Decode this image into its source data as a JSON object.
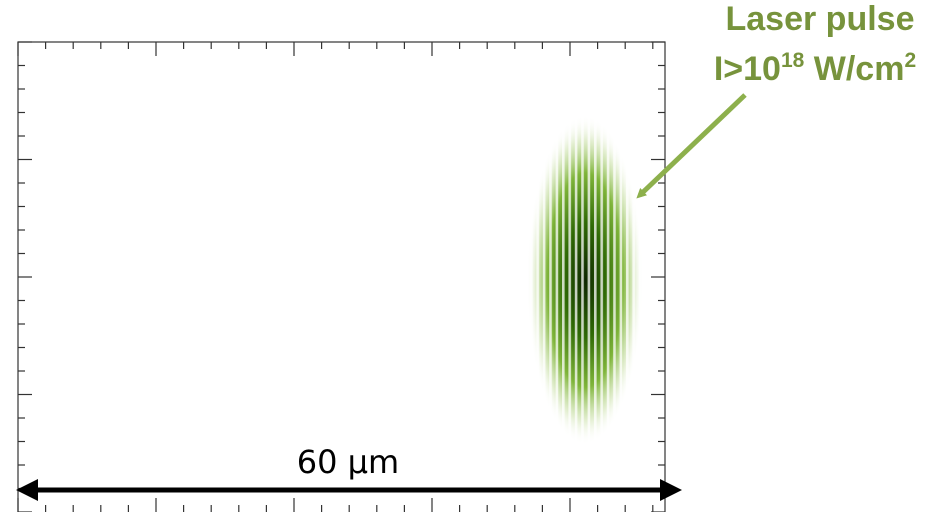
{
  "annotation": {
    "title": "Laser pulse",
    "intensity_prefix": "I>10",
    "intensity_exponent": "18",
    "intensity_unit": " W/cm",
    "unit_exponent": "2"
  },
  "scale_bar": {
    "label": "60 µm"
  }
}
